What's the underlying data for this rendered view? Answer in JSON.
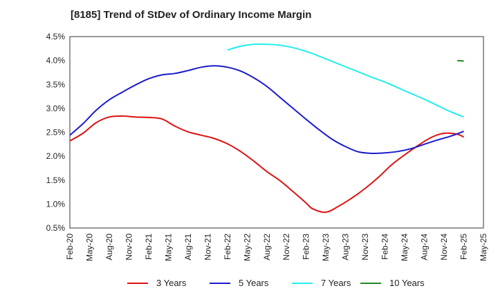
{
  "chart_data": {
    "type": "line",
    "title": "[8185]  Trend of StDev of Ordinary Income Margin",
    "xlabel": "",
    "ylabel": "",
    "x_ticks": [
      "Feb-20",
      "May-20",
      "Aug-20",
      "Nov-20",
      "Feb-21",
      "May-21",
      "Aug-21",
      "Nov-21",
      "Feb-22",
      "May-22",
      "Aug-22",
      "Nov-22",
      "Feb-23",
      "May-23",
      "Aug-23",
      "Nov-23",
      "Feb-24",
      "May-24",
      "Aug-24",
      "Nov-24",
      "Feb-25",
      "May-25"
    ],
    "y_ticks": [
      "0.5%",
      "1.0%",
      "1.5%",
      "2.0%",
      "2.5%",
      "3.0%",
      "3.5%",
      "4.0%",
      "4.5%"
    ],
    "ylim": [
      0.5,
      4.5
    ],
    "grid": true,
    "legend_position": "bottom",
    "series": [
      {
        "name": "3 Years",
        "color": "#dd1111",
        "x": [
          "2020-02",
          "2020-04",
          "2020-06",
          "2020-08",
          "2020-10",
          "2020-12",
          "2021-02",
          "2021-04",
          "2021-06",
          "2021-08",
          "2021-10",
          "2021-12",
          "2022-02",
          "2022-04",
          "2022-06",
          "2022-08",
          "2022-10",
          "2022-12",
          "2023-02",
          "2023-03",
          "2023-05",
          "2023-07",
          "2023-09",
          "2023-11",
          "2024-01",
          "2024-03",
          "2024-05",
          "2024-07",
          "2024-09",
          "2024-11",
          "2025-01",
          "2025-02"
        ],
        "values": [
          2.32,
          2.48,
          2.7,
          2.82,
          2.84,
          2.82,
          2.81,
          2.78,
          2.63,
          2.51,
          2.44,
          2.37,
          2.26,
          2.1,
          1.9,
          1.68,
          1.49,
          1.26,
          1.02,
          0.9,
          0.83,
          0.96,
          1.13,
          1.33,
          1.56,
          1.82,
          2.03,
          2.22,
          2.39,
          2.48,
          2.46,
          2.4
        ]
      },
      {
        "name": "5 Years",
        "color": "#1a1acc",
        "x": [
          "2020-02",
          "2020-04",
          "2020-06",
          "2020-08",
          "2020-10",
          "2020-12",
          "2021-02",
          "2021-04",
          "2021-06",
          "2021-08",
          "2021-10",
          "2021-12",
          "2022-02",
          "2022-04",
          "2022-06",
          "2022-08",
          "2022-10",
          "2022-12",
          "2023-02",
          "2023-04",
          "2023-06",
          "2023-08",
          "2023-10",
          "2023-12",
          "2024-02",
          "2024-04",
          "2024-06",
          "2024-08",
          "2024-10",
          "2024-12",
          "2025-02"
        ],
        "values": [
          2.44,
          2.68,
          2.96,
          3.18,
          3.34,
          3.49,
          3.62,
          3.7,
          3.73,
          3.79,
          3.86,
          3.89,
          3.86,
          3.78,
          3.64,
          3.46,
          3.23,
          3.0,
          2.77,
          2.55,
          2.35,
          2.2,
          2.09,
          2.06,
          2.07,
          2.1,
          2.16,
          2.25,
          2.34,
          2.42,
          2.52
        ]
      },
      {
        "name": "7 Years",
        "color": "#22eeee",
        "x": [
          "2022-02",
          "2022-04",
          "2022-06",
          "2022-08",
          "2022-10",
          "2022-12",
          "2023-02",
          "2023-04",
          "2023-06",
          "2023-08",
          "2023-10",
          "2023-12",
          "2024-02",
          "2024-04",
          "2024-06",
          "2024-08",
          "2024-10",
          "2024-12",
          "2025-02"
        ],
        "values": [
          4.22,
          4.3,
          4.34,
          4.34,
          4.32,
          4.27,
          4.19,
          4.09,
          3.98,
          3.87,
          3.76,
          3.65,
          3.55,
          3.43,
          3.31,
          3.19,
          3.06,
          2.93,
          2.82
        ]
      },
      {
        "name": "10 Years",
        "color": "#228822",
        "x": [
          "2025-01",
          "2025-02"
        ],
        "values": [
          4.0,
          3.99
        ]
      }
    ]
  }
}
